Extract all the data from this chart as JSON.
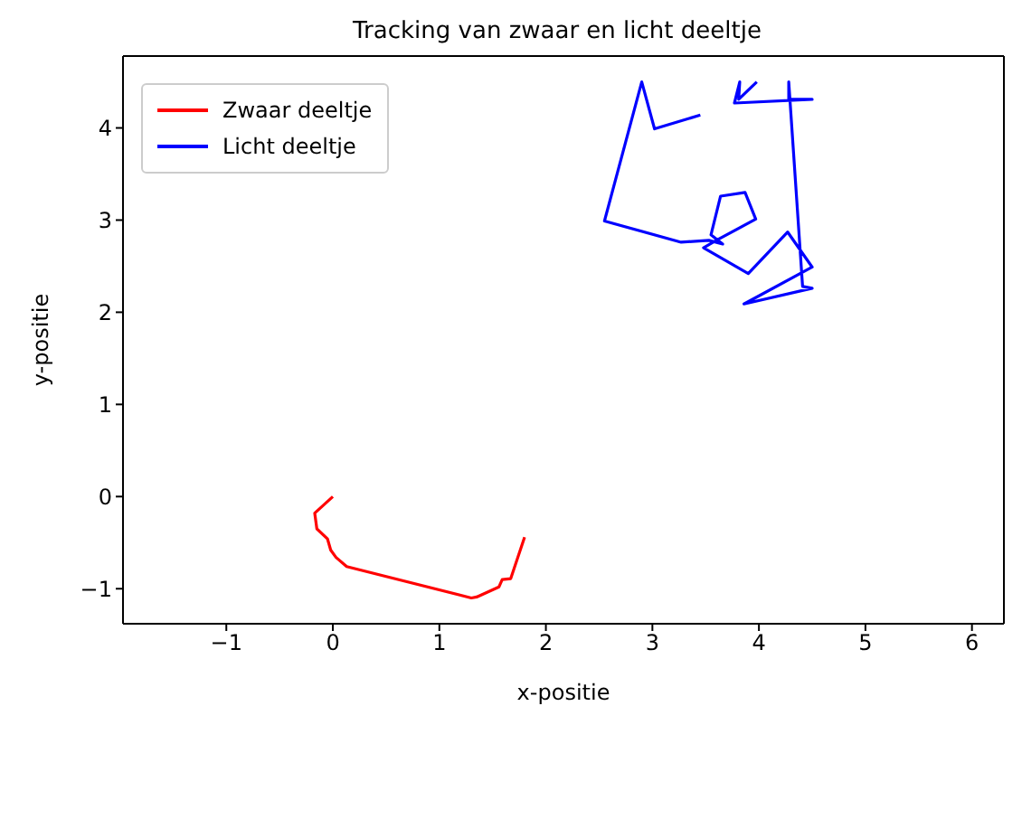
{
  "chart_data": {
    "type": "line",
    "title": "Tracking van zwaar en licht deeltje",
    "xlabel": "x-positie",
    "ylabel": "y-positie",
    "xlim": [
      -1.97,
      6.3
    ],
    "ylim": [
      -1.38,
      4.78
    ],
    "xticks": [
      -1,
      0,
      1,
      2,
      3,
      4,
      5,
      6
    ],
    "yticks": [
      -1,
      0,
      1,
      2,
      3,
      4
    ],
    "grid": false,
    "legend": "top left",
    "marker": "none",
    "line_style": "solid",
    "series": [
      {
        "name": "Zwaar deeltje",
        "color": "#ff0000",
        "x": [
          0,
          -0.17,
          -0.15,
          -0.05,
          -0.02,
          0.03,
          0.13,
          1.3,
          1.35,
          1.56,
          1.59,
          1.67,
          1.8
        ],
        "values": [
          0,
          -0.18,
          -0.35,
          -0.46,
          -0.58,
          -0.66,
          -0.76,
          -1.1,
          -1.09,
          -0.98,
          -0.9,
          -0.89,
          -0.44
        ]
      },
      {
        "name": "Licht deeltje",
        "color": "#0000ff",
        "x": [
          3.45,
          3.02,
          2.9,
          2.55,
          3.27,
          3.53,
          3.66,
          3.55,
          3.64,
          3.87,
          3.97,
          3.6,
          3.48,
          3.9,
          4.27,
          4.5,
          3.86,
          4.5,
          4.41,
          4.28,
          4.28,
          4.5,
          3.77,
          3.82,
          3.81,
          3.98
        ],
        "values": [
          4.14,
          3.99,
          4.5,
          2.99,
          2.76,
          2.78,
          2.74,
          2.84,
          3.26,
          3.3,
          3.01,
          2.78,
          2.7,
          2.42,
          2.87,
          2.49,
          2.09,
          2.26,
          2.28,
          4.5,
          4.31,
          4.31,
          4.27,
          4.5,
          4.31,
          4.5
        ]
      }
    ]
  }
}
